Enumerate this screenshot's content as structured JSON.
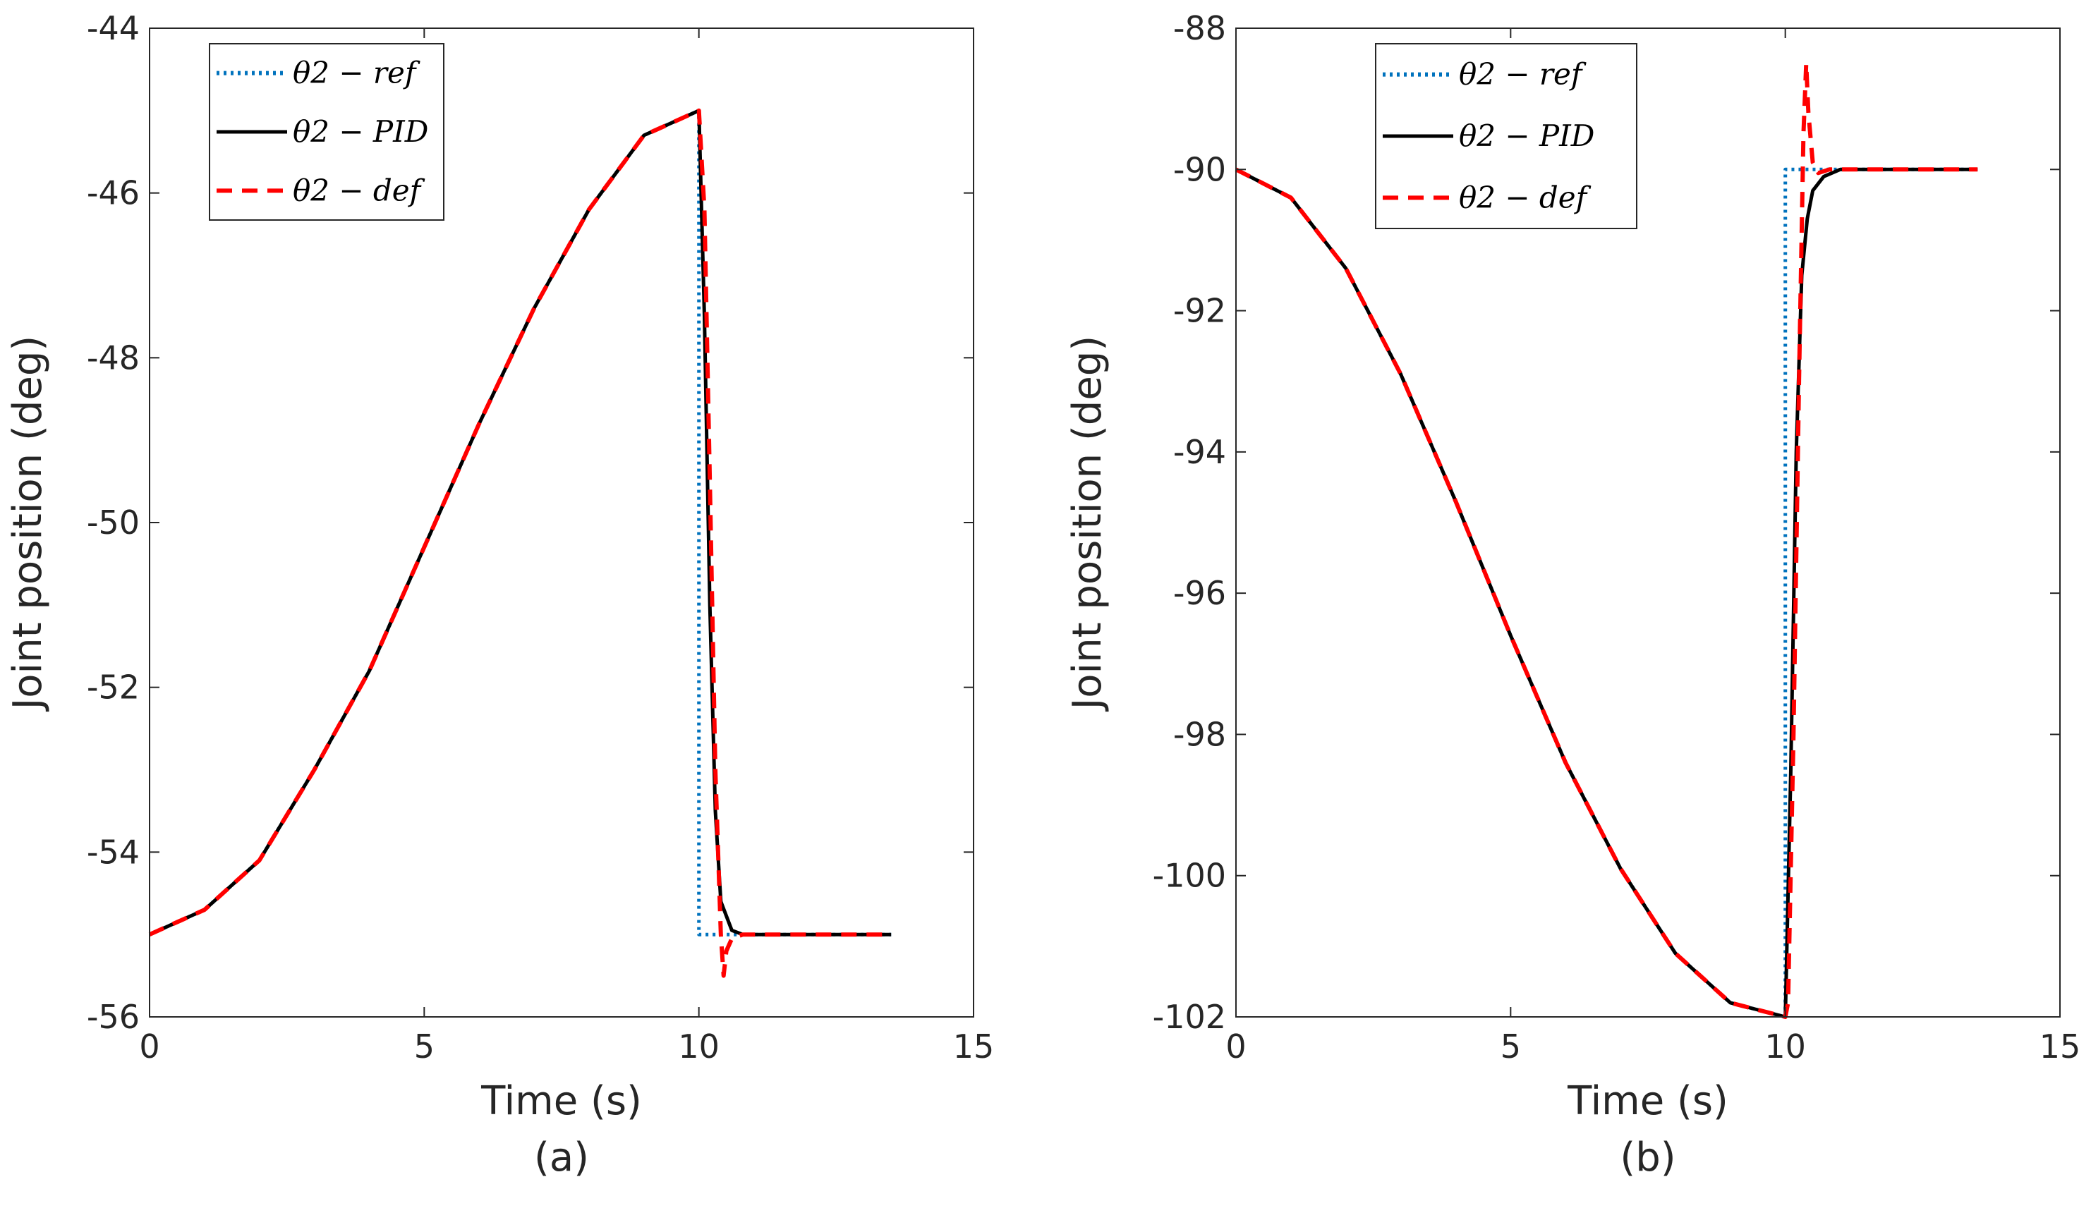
{
  "chart_data": [
    {
      "type": "line",
      "panel": "(a)",
      "xlabel": "Time (s)",
      "ylabel": "Joint position (deg)",
      "caption": "(a)",
      "xlim": [
        0,
        15
      ],
      "ylim": [
        -56,
        -44
      ],
      "xticks": [
        0,
        5,
        10,
        15
      ],
      "yticks": [
        -56,
        -54,
        -52,
        -50,
        -48,
        -46,
        -44
      ],
      "legend_position": "top-left",
      "series": [
        {
          "name": "θ2 − ref",
          "style": "dotted",
          "color": "#0072BD",
          "x": [
            0,
            1,
            2,
            3,
            4,
            5,
            6,
            7,
            8,
            9,
            10,
            10.001,
            13.5
          ],
          "y": [
            -55,
            -54.7,
            -54.1,
            -53.0,
            -51.8,
            -50.3,
            -48.8,
            -47.4,
            -46.2,
            -45.3,
            -45,
            -55,
            -55
          ]
        },
        {
          "name": "θ2 − PID",
          "style": "solid",
          "color": "#000000",
          "x": [
            0,
            1,
            2,
            3,
            4,
            5,
            6,
            7,
            8,
            9,
            10,
            10.1,
            10.2,
            10.3,
            10.4,
            10.6,
            10.8,
            13.5
          ],
          "y": [
            -55,
            -54.7,
            -54.1,
            -53.0,
            -51.8,
            -50.3,
            -48.8,
            -47.4,
            -46.2,
            -45.3,
            -45,
            -47.5,
            -51.0,
            -53.5,
            -54.6,
            -54.95,
            -55,
            -55
          ]
        },
        {
          "name": "θ2 − def",
          "style": "dashed",
          "color": "#FF0000",
          "x": [
            0,
            1,
            2,
            3,
            4,
            5,
            6,
            7,
            8,
            9,
            10,
            10.1,
            10.2,
            10.3,
            10.4,
            10.45,
            10.5,
            10.6,
            10.8,
            13.5
          ],
          "y": [
            -55,
            -54.7,
            -54.1,
            -53.0,
            -51.8,
            -50.3,
            -48.8,
            -47.4,
            -46.2,
            -45.3,
            -45,
            -46.2,
            -49.5,
            -53.0,
            -55.0,
            -55.5,
            -55.2,
            -55.05,
            -55,
            -55
          ]
        }
      ]
    },
    {
      "type": "line",
      "panel": "(b)",
      "xlabel": "Time (s)",
      "ylabel": "Joint position (deg)",
      "caption": "(b)",
      "xlim": [
        0,
        15
      ],
      "ylim": [
        -102,
        -88
      ],
      "xticks": [
        0,
        5,
        10,
        15
      ],
      "yticks": [
        -102,
        -100,
        -98,
        -96,
        -94,
        -92,
        -90,
        -88
      ],
      "legend_position": "top-center",
      "series": [
        {
          "name": "θ2 − ref",
          "style": "dotted",
          "color": "#0072BD",
          "x": [
            0,
            1,
            2,
            3,
            4,
            5,
            6,
            7,
            8,
            9,
            10,
            10.001,
            13.5
          ],
          "y": [
            -90,
            -90.4,
            -91.4,
            -92.9,
            -94.7,
            -96.6,
            -98.4,
            -99.9,
            -101.1,
            -101.8,
            -102,
            -90,
            -90
          ]
        },
        {
          "name": "θ2 − PID",
          "style": "solid",
          "color": "#000000",
          "x": [
            0,
            1,
            2,
            3,
            4,
            5,
            6,
            7,
            8,
            9,
            10,
            10.1,
            10.2,
            10.3,
            10.4,
            10.5,
            10.7,
            11.0,
            13.5
          ],
          "y": [
            -90,
            -90.4,
            -91.4,
            -92.9,
            -94.7,
            -96.6,
            -98.4,
            -99.9,
            -101.1,
            -101.8,
            -102,
            -98.5,
            -94.0,
            -91.5,
            -90.7,
            -90.3,
            -90.1,
            -90,
            -90
          ]
        },
        {
          "name": "θ2 − def",
          "style": "dashed",
          "color": "#FF0000",
          "x": [
            0,
            1,
            2,
            3,
            4,
            5,
            6,
            7,
            8,
            9,
            10,
            10.05,
            10.15,
            10.25,
            10.33,
            10.38,
            10.42,
            10.5,
            10.6,
            10.8,
            13.5
          ],
          "y": [
            -90,
            -90.4,
            -91.4,
            -92.9,
            -94.7,
            -96.6,
            -98.4,
            -99.9,
            -101.1,
            -101.8,
            -102,
            -101.8,
            -98.0,
            -93.0,
            -89.5,
            -88.5,
            -89.2,
            -89.9,
            -90.05,
            -90,
            -90
          ]
        }
      ]
    }
  ]
}
